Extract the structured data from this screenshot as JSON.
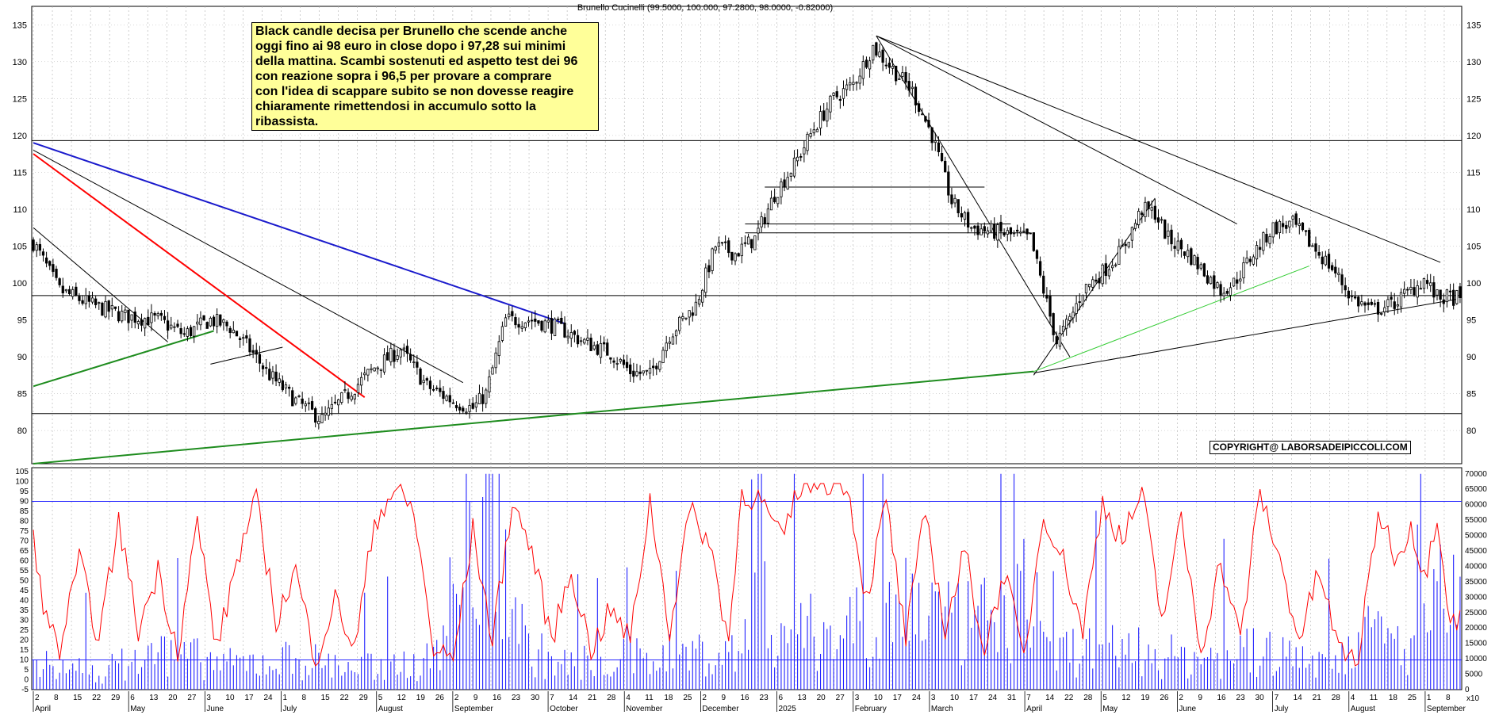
{
  "header": {
    "title": "Brunello Cucinelli (99.5000, 100.000, 97.2800, 98.0000, -0.82000)"
  },
  "annotation": {
    "text": "Black candle decisa per Brunello che scende anche\noggi fino ai 98 euro in close dopo i 97,28 sui minimi\ndella mattina. Scambi sostenuti  ed aspetto test dei 96\ncon reazione sopra i 96,5 per provare a comprare\ncon l'idea di scappare subito se non dovesse reagire\nchiaramente rimettendosi in accumulo sotto la ribassista."
  },
  "copyright": "COPYRIGHT@ LABORSADEIPICCOLI.COM",
  "colors": {
    "candle": "#000000",
    "grid": "#b0b0b0",
    "trend_red": "#ff0000",
    "trend_blue": "#1a1acc",
    "trend_green": "#1e8c1e",
    "trend_light_green": "#33cc33",
    "osc_red": "#ff0000",
    "volume_blue": "#2222ff"
  },
  "chart_data": [
    {
      "type": "candlestick",
      "title": "Brunello Cucinelli (99.5000, 100.000, 97.2800, 98.0000, -0.82000)",
      "last_bar": {
        "open": 99.5,
        "high": 100.0,
        "low": 97.28,
        "close": 98.0,
        "change": -0.82
      },
      "ylim": [
        75.5,
        137.5
      ],
      "y_ticks": [
        80,
        85,
        90,
        95,
        100,
        105,
        110,
        115,
        120,
        125,
        130,
        135
      ],
      "horizontal_levels": [
        119.3,
        98.3,
        82.3
      ],
      "x_months": [
        "April",
        "May",
        "June",
        "July",
        "August",
        "September",
        "October",
        "November",
        "December",
        "2025",
        "February",
        "March",
        "April",
        "May",
        "June",
        "July",
        "August",
        "September"
      ],
      "x_days": [
        "2",
        "8",
        "15",
        "22",
        "29",
        "6",
        "13",
        "20",
        "27",
        "3",
        "10",
        "17",
        "24",
        "1",
        "8",
        "15",
        "22",
        "29",
        "5",
        "12",
        "19",
        "26",
        "2",
        "9",
        "16",
        "23",
        "30",
        "7",
        "14",
        "21",
        "28",
        "4",
        "11",
        "18",
        "25",
        "2",
        "9",
        "16",
        "23",
        "6",
        "13",
        "20",
        "27",
        "3",
        "10",
        "17",
        "24",
        "3",
        "10",
        "17",
        "24",
        "31",
        "7",
        "14",
        "22",
        "28",
        "5",
        "12",
        "19",
        "26",
        "2",
        "9",
        "16",
        "23",
        "30",
        "7",
        "14",
        "21",
        "28",
        "4",
        "11",
        "18",
        "25",
        "1",
        "8"
      ],
      "anchor_closes": [
        [
          0,
          105.5
        ],
        [
          8,
          99
        ],
        [
          18,
          97
        ],
        [
          28,
          95.5
        ],
        [
          38,
          95
        ],
        [
          46,
          93
        ],
        [
          54,
          95
        ],
        [
          60,
          94
        ],
        [
          66,
          91
        ],
        [
          72,
          87.5
        ],
        [
          80,
          84
        ],
        [
          88,
          81.5
        ],
        [
          96,
          85
        ],
        [
          104,
          88.5
        ],
        [
          112,
          91
        ],
        [
          120,
          86
        ],
        [
          128,
          84
        ],
        [
          134,
          83
        ],
        [
          138,
          85
        ],
        [
          144,
          95
        ],
        [
          152,
          95
        ],
        [
          160,
          94
        ],
        [
          168,
          92
        ],
        [
          176,
          90.5
        ],
        [
          182,
          88
        ],
        [
          188,
          87.5
        ],
        [
          194,
          93
        ],
        [
          202,
          97
        ],
        [
          208,
          105
        ],
        [
          214,
          104
        ],
        [
          220,
          106
        ],
        [
          226,
          112
        ],
        [
          232,
          116
        ],
        [
          238,
          121
        ],
        [
          244,
          125
        ],
        [
          250,
          127
        ],
        [
          256,
          132
        ],
        [
          262,
          129
        ],
        [
          268,
          126
        ],
        [
          274,
          120
        ],
        [
          280,
          111
        ],
        [
          286,
          107.5
        ],
        [
          292,
          107
        ],
        [
          298,
          106.5
        ],
        [
          304,
          106
        ],
        [
          308,
          99
        ],
        [
          312,
          92
        ],
        [
          316,
          95
        ],
        [
          320,
          99
        ],
        [
          326,
          101.5
        ],
        [
          332,
          104.5
        ],
        [
          338,
          110
        ],
        [
          342,
          109.5
        ],
        [
          346,
          106
        ],
        [
          352,
          104
        ],
        [
          358,
          101
        ],
        [
          362,
          99
        ],
        [
          366,
          100
        ],
        [
          372,
          104
        ],
        [
          378,
          107.5
        ],
        [
          384,
          108
        ],
        [
          390,
          105
        ],
        [
          396,
          102
        ],
        [
          402,
          98
        ],
        [
          408,
          96.3
        ],
        [
          414,
          97
        ],
        [
          420,
          99
        ],
        [
          424,
          100.5
        ],
        [
          428,
          98
        ]
      ],
      "trendlines": [
        {
          "color": "red",
          "from": [
            0,
            117.5
          ],
          "to": [
            101,
            84.5
          ]
        },
        {
          "color": "blue",
          "from": [
            0,
            119
          ],
          "to": [
            162,
            94.5
          ]
        },
        {
          "color": "black",
          "from": [
            0,
            118
          ],
          "to": [
            131,
            86.5
          ]
        },
        {
          "color": "black",
          "from": [
            0,
            107.5
          ],
          "to": [
            41,
            92
          ]
        },
        {
          "color": "black",
          "from": [
            54,
            89
          ],
          "to": [
            76,
            91.3
          ]
        },
        {
          "color": "green",
          "from": [
            0,
            86
          ],
          "to": [
            55,
            93.5
          ]
        },
        {
          "color": "green",
          "from": [
            0,
            75.5
          ],
          "to": [
            305,
            88
          ]
        },
        {
          "color": "black",
          "from": [
            257,
            133.5
          ],
          "to": [
            316,
            90
          ]
        },
        {
          "color": "black",
          "from": [
            257,
            133.5
          ],
          "to": [
            367,
            108
          ]
        },
        {
          "color": "black",
          "from": [
            257,
            133.5
          ],
          "to": [
            429,
            102.8
          ]
        },
        {
          "color": "black",
          "from": [
            305,
            87.8
          ],
          "to": [
            434,
            97.8
          ]
        },
        {
          "color": "black",
          "from": [
            305,
            87.5
          ],
          "to": [
            342,
            111.5
          ]
        },
        {
          "color": "light_green",
          "from": [
            305,
            88
          ],
          "to": [
            389,
            102.3
          ]
        },
        {
          "color": "black",
          "from": [
            217,
            106.8
          ],
          "to": [
            304,
            106.8
          ]
        },
        {
          "color": "black",
          "from": [
            217,
            108
          ],
          "to": [
            298,
            108
          ]
        },
        {
          "color": "black",
          "from": [
            223,
            113
          ],
          "to": [
            290,
            113
          ]
        }
      ]
    },
    {
      "type": "line",
      "name": "oscillator",
      "ylim": [
        -5,
        107
      ],
      "y_ticks": [
        -5,
        0,
        5,
        10,
        15,
        20,
        25,
        30,
        35,
        40,
        45,
        50,
        55,
        60,
        65,
        70,
        75,
        80,
        85,
        90,
        95,
        100,
        105
      ],
      "levels": [
        10,
        90
      ],
      "anchor_values": [
        [
          0,
          70
        ],
        [
          4,
          30
        ],
        [
          8,
          15
        ],
        [
          14,
          60
        ],
        [
          20,
          20
        ],
        [
          26,
          80
        ],
        [
          32,
          25
        ],
        [
          38,
          55
        ],
        [
          44,
          15
        ],
        [
          50,
          80
        ],
        [
          56,
          15
        ],
        [
          62,
          60
        ],
        [
          68,
          90
        ],
        [
          74,
          30
        ],
        [
          80,
          55
        ],
        [
          86,
          10
        ],
        [
          92,
          40
        ],
        [
          98,
          15
        ],
        [
          104,
          80
        ],
        [
          110,
          96
        ],
        [
          116,
          85
        ],
        [
          122,
          15
        ],
        [
          128,
          10
        ],
        [
          134,
          75
        ],
        [
          140,
          20
        ],
        [
          146,
          90
        ],
        [
          152,
          65
        ],
        [
          158,
          20
        ],
        [
          164,
          55
        ],
        [
          170,
          15
        ],
        [
          176,
          35
        ],
        [
          182,
          20
        ],
        [
          188,
          90
        ],
        [
          194,
          25
        ],
        [
          200,
          85
        ],
        [
          206,
          70
        ],
        [
          212,
          20
        ],
        [
          216,
          95
        ],
        [
          222,
          90
        ],
        [
          228,
          70
        ],
        [
          234,
          99
        ],
        [
          240,
          100
        ],
        [
          248,
          100
        ],
        [
          254,
          40
        ],
        [
          260,
          90
        ],
        [
          266,
          20
        ],
        [
          272,
          85
        ],
        [
          278,
          25
        ],
        [
          284,
          65
        ],
        [
          290,
          15
        ],
        [
          296,
          55
        ],
        [
          302,
          10
        ],
        [
          308,
          85
        ],
        [
          314,
          60
        ],
        [
          320,
          25
        ],
        [
          326,
          90
        ],
        [
          332,
          70
        ],
        [
          338,
          95
        ],
        [
          344,
          30
        ],
        [
          350,
          80
        ],
        [
          356,
          15
        ],
        [
          362,
          60
        ],
        [
          368,
          20
        ],
        [
          374,
          95
        ],
        [
          380,
          60
        ],
        [
          386,
          20
        ],
        [
          392,
          55
        ],
        [
          398,
          15
        ],
        [
          404,
          10
        ],
        [
          410,
          85
        ],
        [
          416,
          60
        ],
        [
          420,
          80
        ],
        [
          424,
          50
        ],
        [
          428,
          85
        ],
        [
          432,
          30
        ]
      ],
      "volume_axis": {
        "ylim": [
          0,
          72000
        ],
        "y_ticks": [
          0,
          5000,
          10000,
          15000,
          20000,
          25000,
          30000,
          35000,
          40000,
          45000,
          50000,
          55000,
          60000,
          65000,
          70000
        ]
      },
      "volume_anchor_values": [
        [
          0,
          8000
        ],
        [
          20,
          6000
        ],
        [
          40,
          12000
        ],
        [
          60,
          8000
        ],
        [
          80,
          10000
        ],
        [
          100,
          7000
        ],
        [
          120,
          9000
        ],
        [
          140,
          60000
        ],
        [
          150,
          14000
        ],
        [
          160,
          8000
        ],
        [
          180,
          10000
        ],
        [
          200,
          12000
        ],
        [
          216,
          11000
        ],
        [
          220,
          68000
        ],
        [
          225,
          20000
        ],
        [
          240,
          18000
        ],
        [
          260,
          25000
        ],
        [
          270,
          30000
        ],
        [
          280,
          20000
        ],
        [
          300,
          25000
        ],
        [
          305,
          35000
        ],
        [
          310,
          12000
        ],
        [
          330,
          14000
        ],
        [
          350,
          10000
        ],
        [
          370,
          12000
        ],
        [
          390,
          10000
        ],
        [
          410,
          18000
        ],
        [
          420,
          12000
        ],
        [
          430,
          30000
        ]
      ],
      "bottom_axis_label": "x10"
    }
  ]
}
